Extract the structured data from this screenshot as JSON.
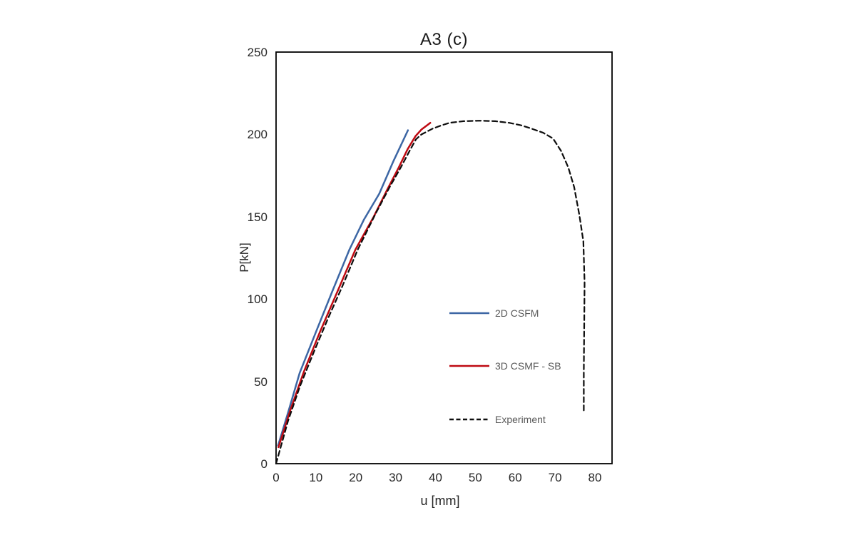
{
  "chart": {
    "title": "A3 (c)"
  },
  "chart_data": {
    "type": "line",
    "title": "A3 (c)",
    "xlabel": "u [mm]",
    "ylabel": "P[kN]",
    "xlim": [
      0,
      84
    ],
    "ylim": [
      0,
      250
    ],
    "x_ticks": [
      0,
      10,
      20,
      30,
      40,
      50,
      60,
      70,
      80
    ],
    "y_ticks": [
      0,
      50,
      100,
      150,
      200,
      250
    ],
    "grid": false,
    "legend_position": "inside-center-right",
    "axis_color": "#000000",
    "series": [
      {
        "name": "2D CSFM",
        "color": "#3C66A4",
        "style": "solid",
        "points": [
          [
            0.5,
            11
          ],
          [
            3,
            31
          ],
          [
            5.9,
            55
          ],
          [
            10,
            80
          ],
          [
            14,
            104
          ],
          [
            18.4,
            130
          ],
          [
            22,
            148
          ],
          [
            25.9,
            164
          ],
          [
            29.5,
            184
          ],
          [
            33.1,
            202.5
          ]
        ]
      },
      {
        "name": "3D CSMF - SB",
        "color": "#BE0A12",
        "style": "solid",
        "points": [
          [
            0.6,
            10
          ],
          [
            3.5,
            32
          ],
          [
            7,
            56
          ],
          [
            11,
            80
          ],
          [
            15.3,
            104
          ],
          [
            19.9,
            130
          ],
          [
            24.5,
            150
          ],
          [
            28,
            167
          ],
          [
            30.8,
            180
          ],
          [
            33,
            191
          ],
          [
            35,
            199
          ],
          [
            36.5,
            203
          ],
          [
            38.7,
            207
          ]
        ]
      },
      {
        "name": "Experiment",
        "color": "#0d0d0d",
        "style": "dashed",
        "points": [
          [
            0,
            0
          ],
          [
            3,
            26
          ],
          [
            6,
            47
          ],
          [
            9.5,
            68
          ],
          [
            13,
            88
          ],
          [
            16.5,
            107
          ],
          [
            20.5,
            130
          ],
          [
            25,
            152
          ],
          [
            28.5,
            168
          ],
          [
            31.3,
            180
          ],
          [
            33.5,
            190
          ],
          [
            35.1,
            197
          ],
          [
            36.5,
            200
          ],
          [
            39.3,
            203.5
          ],
          [
            41.5,
            205.5
          ],
          [
            43.5,
            207
          ],
          [
            47,
            208
          ],
          [
            51,
            208.3
          ],
          [
            55,
            208
          ],
          [
            58.5,
            207
          ],
          [
            61.5,
            205.5
          ],
          [
            63.5,
            204
          ],
          [
            67,
            201
          ],
          [
            69.5,
            197.5
          ],
          [
            71.5,
            190
          ],
          [
            73.3,
            180
          ],
          [
            74.8,
            168
          ],
          [
            76.1,
            151
          ],
          [
            77.1,
            135
          ],
          [
            77.4,
            110
          ],
          [
            77.3,
            80
          ],
          [
            77.2,
            55
          ],
          [
            77.2,
            32
          ]
        ]
      }
    ]
  }
}
